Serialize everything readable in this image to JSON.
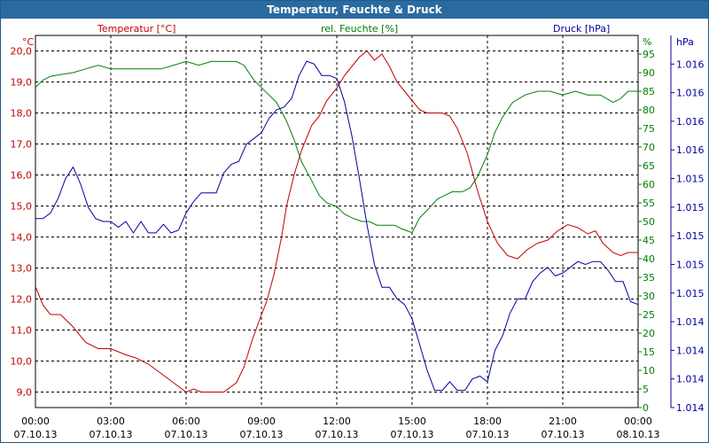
{
  "window": {
    "title": "Temperatur, Feuchte & Druck"
  },
  "colors": {
    "temperature": "#c00000",
    "humidity": "#008000",
    "pressure": "#0000a0",
    "grid": "#000000",
    "titlebar": "#2a6aa0"
  },
  "chart_data": {
    "type": "line",
    "title": "Temperatur, Feuchte & Druck",
    "grid": true,
    "x_labels": [
      {
        "time": "00:00",
        "date": "07.10.13"
      },
      {
        "time": "03:00",
        "date": "07.10.13"
      },
      {
        "time": "06:00",
        "date": "07.10.13"
      },
      {
        "time": "09:00",
        "date": "07.10.13"
      },
      {
        "time": "12:00",
        "date": "07.10.13"
      },
      {
        "time": "15:00",
        "date": "07.10.13"
      },
      {
        "time": "18:00",
        "date": "07.10.13"
      },
      {
        "time": "21:00",
        "date": "07.10.13"
      },
      {
        "time": "00:00",
        "date": "08.10.13"
      }
    ],
    "x_range_hours": [
      0,
      24
    ],
    "axes": {
      "temperature": {
        "label": "Temperatur [°C]",
        "unit": "°C",
        "range": [
          8.5,
          20.5
        ],
        "ticks": [
          "9,0",
          "10,0",
          "11,0",
          "12,0",
          "13,0",
          "14,0",
          "15,0",
          "16,0",
          "17,0",
          "18,0",
          "19,0",
          "20,0"
        ],
        "tick_values": [
          9,
          10,
          11,
          12,
          13,
          14,
          15,
          16,
          17,
          18,
          19,
          20
        ]
      },
      "humidity": {
        "label": "rel. Feuchte [%]",
        "unit": "%",
        "range": [
          0,
          100
        ],
        "ticks": [
          "0",
          "5",
          "10",
          "15",
          "20",
          "25",
          "30",
          "35",
          "40",
          "45",
          "50",
          "55",
          "60",
          "65",
          "70",
          "75",
          "80",
          "85",
          "90",
          "95"
        ],
        "tick_values": [
          0,
          5,
          10,
          15,
          20,
          25,
          30,
          35,
          40,
          45,
          50,
          55,
          60,
          65,
          70,
          75,
          80,
          85,
          90,
          95
        ]
      },
      "pressure": {
        "label": "Druck [hPa]",
        "unit": "hPa",
        "range": [
          0,
          13
        ],
        "ticks": [
          "1.014",
          "1.014",
          "1.014",
          "1.014",
          "1.015",
          "1.015",
          "1.015",
          "1.015",
          "1.015",
          "1.016",
          "1.016",
          "1.016",
          "1.016"
        ],
        "tick_values": [
          0,
          1,
          2,
          3,
          4,
          5,
          6,
          7,
          8,
          9,
          10,
          11,
          12
        ]
      }
    },
    "series": [
      {
        "name": "Temperatur [°C]",
        "axis": "temperature",
        "color": "#c00000",
        "x": [
          0,
          0.3,
          0.6,
          1,
          1.5,
          2,
          2.5,
          3,
          3.3,
          3.6,
          4,
          4.5,
          5,
          5.5,
          6,
          6.3,
          6.6,
          7,
          7.5,
          8,
          8.3,
          8.6,
          9,
          9.2,
          9.5,
          9.8,
          10,
          10.3,
          10.6,
          11,
          11.3,
          11.6,
          12,
          12.3,
          12.6,
          12.9,
          13.2,
          13.5,
          13.8,
          14.1,
          14.4,
          14.7,
          15,
          15.3,
          15.6,
          15.9,
          16.2,
          16.5,
          16.8,
          17.2,
          17.6,
          18,
          18.4,
          18.8,
          19.2,
          19.6,
          20,
          20.4,
          20.8,
          21.2,
          21.6,
          22,
          22.3,
          22.6,
          23,
          23.3,
          23.6,
          24
        ],
        "y": [
          12.4,
          11.8,
          11.5,
          11.5,
          11.1,
          10.6,
          10.4,
          10.4,
          10.3,
          10.2,
          10.1,
          9.9,
          9.6,
          9.3,
          9.0,
          9.1,
          9.0,
          9.0,
          9.0,
          9.3,
          9.8,
          10.6,
          11.5,
          11.9,
          12.8,
          14.0,
          15.0,
          16.0,
          16.8,
          17.6,
          17.9,
          18.4,
          18.8,
          19.2,
          19.5,
          19.8,
          20.0,
          19.7,
          19.9,
          19.5,
          19.0,
          18.7,
          18.4,
          18.1,
          18.0,
          18.0,
          18.0,
          17.9,
          17.5,
          16.7,
          15.5,
          14.5,
          13.8,
          13.4,
          13.3,
          13.6,
          13.8,
          13.9,
          14.2,
          14.4,
          14.3,
          14.1,
          14.2,
          13.8,
          13.5,
          13.4,
          13.5,
          13.5
        ]
      },
      {
        "name": "rel. Feuchte [%]",
        "axis": "humidity",
        "color": "#008000",
        "x": [
          0,
          0.3,
          0.6,
          1,
          1.5,
          2,
          2.5,
          3,
          3.5,
          4,
          4.5,
          5,
          5.5,
          6,
          6.5,
          7,
          7.5,
          8,
          8.3,
          8.7,
          9,
          9.3,
          9.6,
          10,
          10.3,
          10.6,
          11,
          11.3,
          11.6,
          12,
          12.3,
          12.6,
          13,
          13.3,
          13.6,
          14,
          14.3,
          14.6,
          15,
          15.3,
          15.6,
          16,
          16.3,
          16.6,
          17,
          17.3,
          17.6,
          18,
          18.3,
          18.6,
          19,
          19.5,
          20,
          20.5,
          21,
          21.5,
          22,
          22.5,
          23,
          23.3,
          23.6,
          24
        ],
        "y": [
          86,
          88,
          89,
          89.5,
          90,
          91,
          92,
          91,
          91,
          91,
          91,
          91,
          92,
          93,
          92,
          93,
          93,
          93,
          92,
          88,
          86,
          84,
          82,
          77,
          72,
          66,
          61,
          57,
          55,
          54,
          52,
          51,
          50,
          50,
          49,
          49,
          49,
          48,
          47,
          51,
          53,
          56,
          57,
          58,
          58,
          59,
          62,
          68,
          74,
          78,
          82,
          84,
          85,
          85,
          84,
          85,
          84,
          84,
          82,
          83,
          85,
          85
        ]
      },
      {
        "name": "Druck [hPa]",
        "axis": "pressure",
        "color": "#0000a0",
        "x": [
          0,
          0.3,
          0.6,
          0.9,
          1.2,
          1.5,
          1.8,
          2.1,
          2.4,
          2.7,
          3,
          3.3,
          3.6,
          3.9,
          4.2,
          4.5,
          4.8,
          5.1,
          5.4,
          5.7,
          6,
          6.3,
          6.6,
          6.9,
          7.2,
          7.5,
          7.8,
          8.1,
          8.4,
          8.7,
          9,
          9.3,
          9.6,
          9.9,
          10.2,
          10.5,
          10.8,
          11.1,
          11.4,
          11.7,
          12,
          12.3,
          12.6,
          12.9,
          13.2,
          13.5,
          13.8,
          14.1,
          14.4,
          14.7,
          15,
          15.3,
          15.6,
          15.9,
          16.2,
          16.5,
          16.8,
          17.1,
          17.4,
          17.7,
          18,
          18.3,
          18.6,
          18.9,
          19.2,
          19.5,
          19.8,
          20.1,
          20.4,
          20.7,
          21,
          21.3,
          21.6,
          21.9,
          22.2,
          22.5,
          22.8,
          23.1,
          23.4,
          23.7,
          24
        ],
        "y": [
          6.6,
          6.6,
          6.8,
          7.3,
          8.0,
          8.4,
          7.8,
          7.0,
          6.6,
          6.5,
          6.5,
          6.3,
          6.5,
          6.1,
          6.5,
          6.1,
          6.1,
          6.4,
          6.1,
          6.2,
          6.8,
          7.2,
          7.5,
          7.5,
          7.5,
          8.2,
          8.5,
          8.6,
          9.2,
          9.4,
          9.6,
          10.1,
          10.4,
          10.5,
          10.8,
          11.6,
          12.1,
          12.0,
          11.6,
          11.6,
          11.5,
          10.7,
          9.5,
          8.0,
          6.4,
          5.0,
          4.2,
          4.2,
          3.8,
          3.6,
          3.1,
          2.2,
          1.3,
          0.6,
          0.6,
          0.9,
          0.6,
          0.6,
          1.0,
          1.1,
          0.9,
          2.0,
          2.5,
          3.3,
          3.8,
          3.8,
          4.4,
          4.7,
          4.9,
          4.6,
          4.7,
          4.9,
          5.1,
          5.0,
          5.1,
          5.1,
          4.8,
          4.4,
          4.4,
          3.7,
          3.6
        ]
      }
    ]
  }
}
